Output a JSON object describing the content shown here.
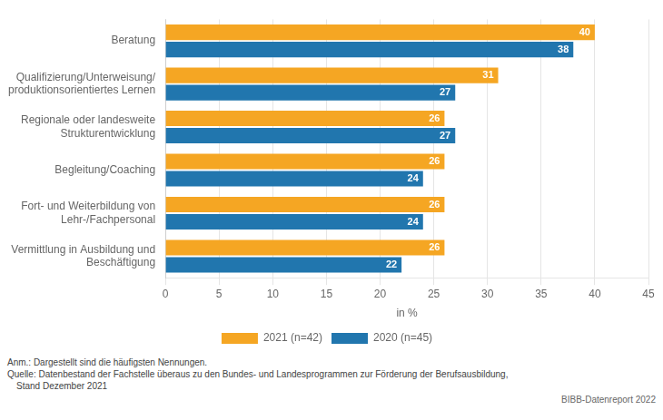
{
  "chart_data": {
    "type": "bar",
    "orientation": "horizontal",
    "categories": [
      "Beratung",
      "Qualifizierung/Unterweisung/\nproduktionsorientiertes Lernen",
      "Regionale oder landesweite\nStrukturentwicklung",
      "Begleitung/Coaching",
      "Fort- und Weiterbildung von\nLehr-/Fachpersonal",
      "Vermittlung in Ausbildung und\nBeschäftigung"
    ],
    "series": [
      {
        "name": "2021 (n=42)",
        "color": "#F5A623",
        "values": [
          40,
          31,
          26,
          26,
          26,
          26
        ]
      },
      {
        "name": "2020 (n=45)",
        "color": "#2176AE",
        "values": [
          38,
          27,
          27,
          24,
          24,
          22
        ]
      }
    ],
    "xlabel": "in %",
    "xlim": [
      0,
      45
    ],
    "xticks": [
      0,
      5,
      10,
      15,
      20,
      25,
      30,
      35,
      40,
      45
    ],
    "grid": true,
    "legend": "bottom",
    "data_labels": true,
    "annotations": [
      "Anm.: Dargestellt sind die häufigsten Nennungen.",
      "Quelle: Datenbestand der Fachstelle überaus zu den Bundes- und Landesprogrammen zur Förderung der Berufsausbildung,",
      "Stand Dezember 2021",
      "BIBB-Datenreport 2022"
    ]
  }
}
